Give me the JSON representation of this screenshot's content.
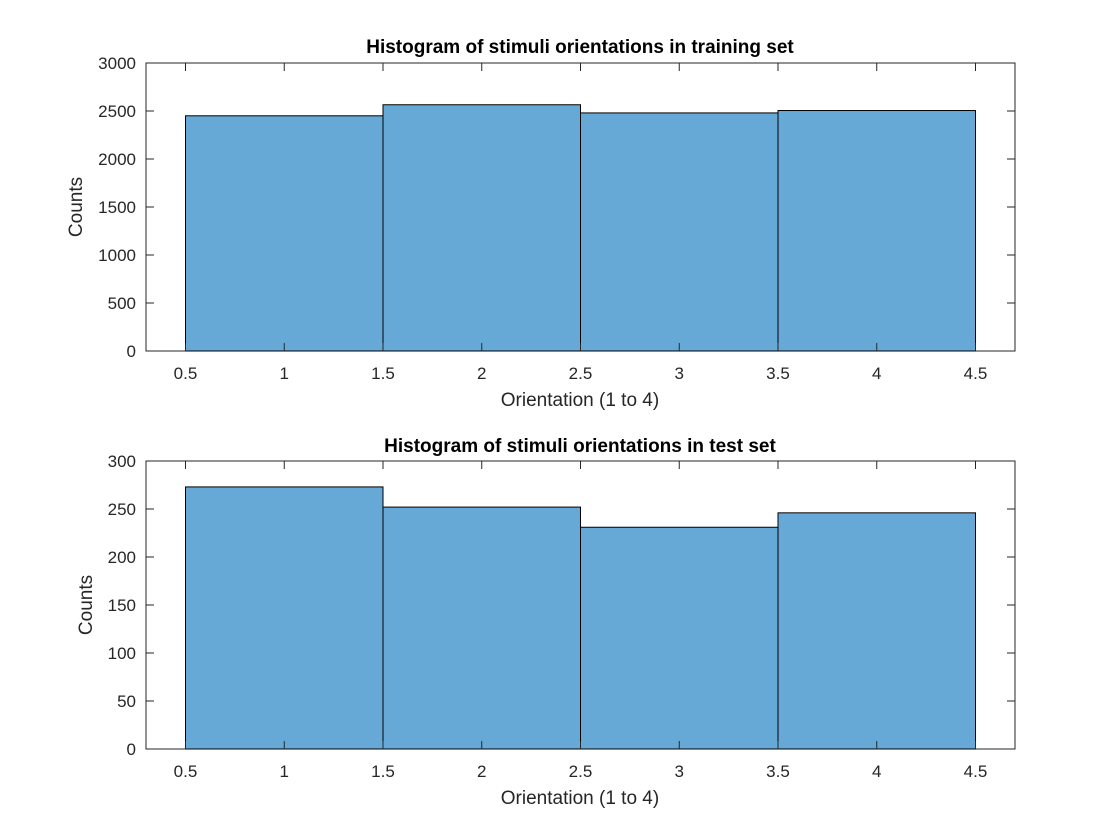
{
  "chart_data": [
    {
      "type": "bar",
      "title": "Histogram of stimuli orientations in training set",
      "xlabel": "Orientation (1 to 4)",
      "ylabel": "Counts",
      "bin_edges": [
        0.5,
        1.5,
        2.5,
        3.5,
        4.5
      ],
      "categories": [
        "1",
        "2",
        "3",
        "4"
      ],
      "values": [
        2450,
        2565,
        2480,
        2505
      ],
      "xlim": [
        0.3,
        4.7
      ],
      "ylim": [
        0,
        3000
      ],
      "xticks": [
        0.5,
        1,
        1.5,
        2,
        2.5,
        3,
        3.5,
        4,
        4.5
      ],
      "xtick_labels": [
        "0.5",
        "1",
        "1.5",
        "2",
        "2.5",
        "3",
        "3.5",
        "4",
        "4.5"
      ],
      "yticks": [
        0,
        500,
        1000,
        1500,
        2000,
        2500,
        3000
      ],
      "ytick_labels": [
        "0",
        "500",
        "1000",
        "1500",
        "2000",
        "2500",
        "3000"
      ],
      "grid": false,
      "bar_color": "#66a9d7",
      "edge_color": "#000000"
    },
    {
      "type": "bar",
      "title": "Histogram of stimuli orientations in test set",
      "xlabel": "Orientation (1 to 4)",
      "ylabel": "Counts",
      "bin_edges": [
        0.5,
        1.5,
        2.5,
        3.5,
        4.5
      ],
      "categories": [
        "1",
        "2",
        "3",
        "4"
      ],
      "values": [
        273,
        252,
        231,
        246
      ],
      "xlim": [
        0.3,
        4.7
      ],
      "ylim": [
        0,
        300
      ],
      "xticks": [
        0.5,
        1,
        1.5,
        2,
        2.5,
        3,
        3.5,
        4,
        4.5
      ],
      "xtick_labels": [
        "0.5",
        "1",
        "1.5",
        "2",
        "2.5",
        "3",
        "3.5",
        "4",
        "4.5"
      ],
      "yticks": [
        0,
        50,
        100,
        150,
        200,
        250,
        300
      ],
      "ytick_labels": [
        "0",
        "50",
        "100",
        "150",
        "200",
        "250",
        "300"
      ],
      "grid": false,
      "bar_color": "#66a9d7",
      "edge_color": "#000000"
    }
  ]
}
